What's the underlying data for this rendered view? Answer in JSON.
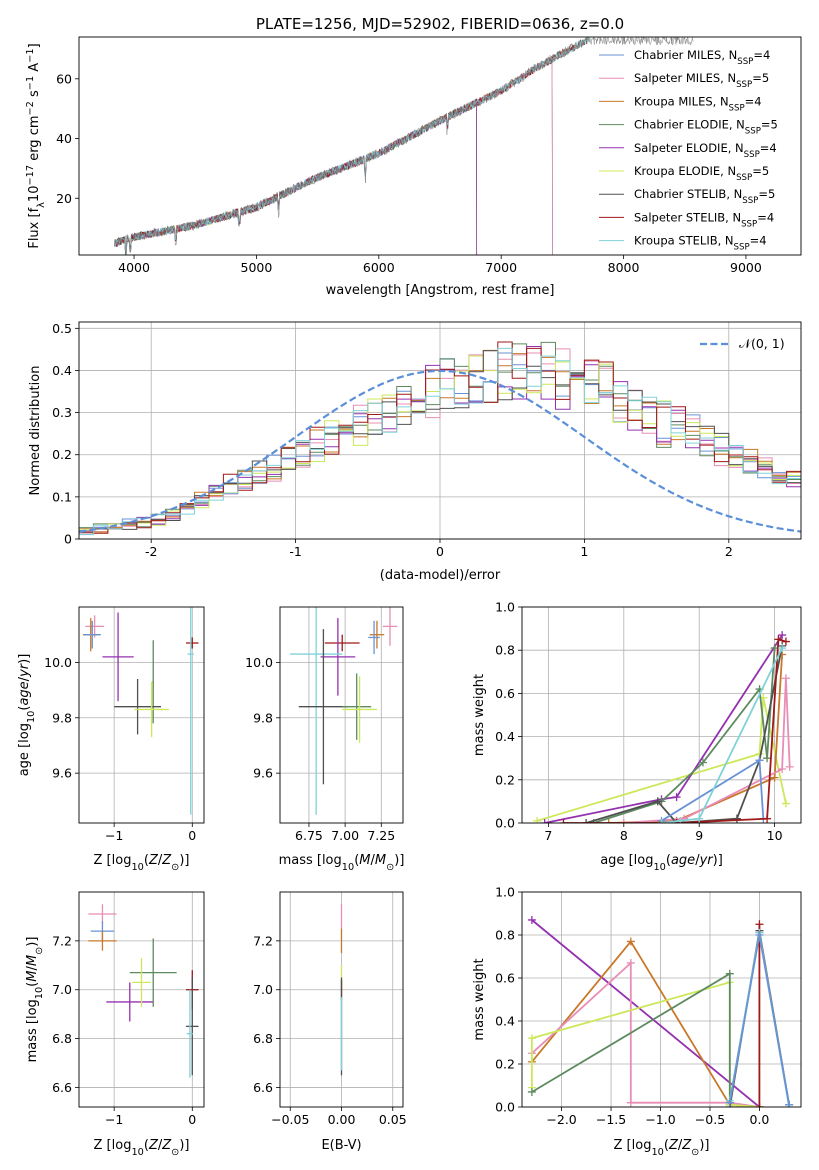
{
  "figure": {
    "title": "PLATE=1256, MJD=52902, FIBERID=0636, z=0.0"
  },
  "colors": {
    "chabrier_miles": "#6a93d6",
    "salpeter_miles": "#e88db5",
    "kroupa_miles": "#c87828",
    "chabrier_elodie": "#5e8a60",
    "salpeter_elodie": "#9530b0",
    "kroupa_elodie": "#cce85a",
    "chabrier_stelib": "#505050",
    "salpeter_stelib": "#a01818",
    "kroupa_stelib": "#7fd2d8",
    "normal": "#5b8fd8"
  },
  "chart_data": [
    {
      "id": "spectrum",
      "type": "line",
      "xlabel": "wavelength [Angstrom, rest frame]",
      "ylabel": "Flux [f_λ10^-17 erg cm^-2 s^-1 A^-1]",
      "xlim": [
        3550,
        9450
      ],
      "ylim": [
        1,
        74
      ],
      "xticks": [
        4000,
        5000,
        6000,
        7000,
        8000,
        9000
      ],
      "yticks": [
        20,
        40,
        60
      ],
      "grid": false,
      "legend": "top-right",
      "series_legend": [
        {
          "key": "chabrier_miles",
          "label": "Chabrier MILES, N",
          "sub": "SSP",
          "tail": "=4"
        },
        {
          "key": "salpeter_miles",
          "label": "Salpeter MILES, N",
          "sub": "SSP",
          "tail": "=5"
        },
        {
          "key": "kroupa_miles",
          "label": "Kroupa MILES, N",
          "sub": "SSP",
          "tail": "=4"
        },
        {
          "key": "chabrier_elodie",
          "label": "Chabrier ELODIE, N",
          "sub": "SSP",
          "tail": "=5"
        },
        {
          "key": "salpeter_elodie",
          "label": "Salpeter ELODIE, N",
          "sub": "SSP",
          "tail": "=4"
        },
        {
          "key": "kroupa_elodie",
          "label": "Kroupa ELODIE, N",
          "sub": "SSP",
          "tail": "=5"
        },
        {
          "key": "chabrier_stelib",
          "label": "Chabrier STELIB, N",
          "sub": "SSP",
          "tail": "=5"
        },
        {
          "key": "salpeter_stelib",
          "label": "Salpeter STELIB, N",
          "sub": "SSP",
          "tail": "=4"
        },
        {
          "key": "kroupa_stelib",
          "label": "Kroupa STELIB, N",
          "sub": "SSP",
          "tail": "=4"
        }
      ],
      "data_trend": {
        "wavelength": [
          3840,
          4000,
          4500,
          5000,
          5500,
          6000,
          6500,
          7000,
          7300,
          7700
        ],
        "flux": [
          5,
          7,
          11,
          17,
          27,
          35,
          46,
          56,
          64,
          73
        ]
      },
      "models": [
        {
          "key": "kroupa_elodie",
          "end": 6800
        },
        {
          "key": "kroupa_miles",
          "end": 7420
        },
        {
          "key": "chabrier_miles",
          "end": 7420
        },
        {
          "key": "salpeter_miles",
          "end": 7420
        },
        {
          "key": "chabrier_elodie",
          "end": 6800
        },
        {
          "key": "salpeter_elodie",
          "end": 6800
        },
        {
          "key": "chabrier_stelib",
          "end": 9300
        },
        {
          "key": "salpeter_stelib",
          "end": 9300
        },
        {
          "key": "kroupa_stelib",
          "end": 9300
        }
      ]
    },
    {
      "id": "residual-hist",
      "type": "histogram",
      "xlabel": "(data-model)/error",
      "ylabel": "Normed distribution",
      "xlim": [
        -2.5,
        2.5
      ],
      "ylim": [
        0,
        0.515
      ],
      "xticks": [
        -2,
        -1,
        0,
        1,
        2
      ],
      "yticks": [
        0.0,
        0.1,
        0.2,
        0.3,
        0.4,
        0.5
      ],
      "grid": true,
      "legend": "top-right",
      "legend_label": "𝒩(0, 1)",
      "bin_width": 0.1,
      "base_profile": [
        0.02,
        0.025,
        0.03,
        0.035,
        0.04,
        0.045,
        0.055,
        0.07,
        0.09,
        0.11,
        0.125,
        0.14,
        0.16,
        0.175,
        0.195,
        0.2,
        0.22,
        0.24,
        0.255,
        0.27,
        0.29,
        0.305,
        0.32,
        0.34,
        0.355,
        0.365,
        0.375,
        0.385,
        0.395,
        0.4,
        0.405,
        0.4,
        0.395,
        0.385,
        0.375,
        0.36,
        0.345,
        0.33,
        0.31,
        0.295,
        0.275,
        0.255,
        0.235,
        0.215,
        0.195,
        0.175,
        0.16,
        0.145,
        0.13,
        0.115
      ],
      "series_keys": [
        "chabrier_miles",
        "salpeter_miles",
        "kroupa_miles",
        "chabrier_elodie",
        "salpeter_elodie",
        "kroupa_elodie",
        "chabrier_stelib",
        "salpeter_stelib",
        "kroupa_stelib"
      ]
    },
    {
      "id": "age-vs-z",
      "type": "errorbar",
      "xlabel": "Z [log10(Z/Z☉)]",
      "ylabel": "age [log10(age/yr)]",
      "xlim": [
        -1.45,
        0.15
      ],
      "ylim": [
        9.42,
        10.2
      ],
      "xticks": [
        -1,
        0
      ],
      "xtick_labels": [
        "−1",
        "0"
      ],
      "yticks": [
        9.6,
        9.8,
        10.0
      ],
      "ytick_labels": [
        "9.6",
        "9.8",
        "10.0"
      ],
      "grid": true,
      "points": [
        {
          "key": "salpeter_miles",
          "x": -1.25,
          "y": 10.13,
          "xerr": 0.12,
          "yerr": 0.04
        },
        {
          "key": "kroupa_miles",
          "x": -1.3,
          "y": 10.1,
          "xerr": 0.1,
          "yerr": 0.06
        },
        {
          "key": "chabrier_miles",
          "x": -1.28,
          "y": 10.1,
          "xerr": 0.11,
          "yerr": 0.05
        },
        {
          "key": "salpeter_elodie",
          "x": -0.95,
          "y": 10.02,
          "xerr": 0.2,
          "yerr": 0.16
        },
        {
          "key": "chabrier_elodie",
          "x": -0.5,
          "y": 9.93,
          "xerr": 0.01,
          "yerr": 0.15
        },
        {
          "key": "chabrier_stelib",
          "x": -0.7,
          "y": 9.84,
          "xerr": 0.3,
          "yerr": 0.1
        },
        {
          "key": "kroupa_elodie",
          "x": -0.52,
          "y": 9.83,
          "xerr": 0.22,
          "yerr": 0.1
        },
        {
          "key": "salpeter_stelib",
          "x": 0.0,
          "y": 10.07,
          "xerr": 0.08,
          "yerr": 0.02
        },
        {
          "key": "kroupa_stelib",
          "x": -0.02,
          "y": 10.03,
          "xerr": 0.04,
          "yerr": 0.58
        }
      ]
    },
    {
      "id": "age-vs-mass",
      "type": "errorbar",
      "xlabel": "mass [log10(M/M☉)]",
      "ylabel": "",
      "xlim": [
        6.55,
        7.4
      ],
      "ylim": [
        9.42,
        10.2
      ],
      "xticks": [
        6.75,
        7.0,
        7.25
      ],
      "xtick_labels": [
        "6.75",
        "7.00",
        "7.25"
      ],
      "yticks": [
        9.6,
        9.8,
        10.0
      ],
      "ytick_labels": [
        "9.6",
        "9.8",
        "10.0"
      ],
      "grid": true,
      "points": [
        {
          "key": "salpeter_miles",
          "x": 7.31,
          "y": 10.13,
          "xerr": 0.05,
          "yerr": 0.07
        },
        {
          "key": "kroupa_miles",
          "x": 7.22,
          "y": 10.1,
          "xerr": 0.05,
          "yerr": 0.05
        },
        {
          "key": "chabrier_miles",
          "x": 7.2,
          "y": 10.09,
          "xerr": 0.04,
          "yerr": 0.06
        },
        {
          "key": "salpeter_stelib",
          "x": 6.98,
          "y": 10.07,
          "xerr": 0.12,
          "yerr": 0.03
        },
        {
          "key": "salpeter_elodie",
          "x": 6.95,
          "y": 10.02,
          "xerr": 0.12,
          "yerr": 0.14
        },
        {
          "key": "kroupa_stelib",
          "x": 6.8,
          "y": 10.03,
          "xerr": 0.18,
          "yerr": 0.58
        },
        {
          "key": "chabrier_stelib",
          "x": 6.85,
          "y": 9.84,
          "xerr": 0.17,
          "yerr": 0.28
        },
        {
          "key": "chabrier_elodie",
          "x": 7.08,
          "y": 9.84,
          "xerr": 0.1,
          "yerr": 0.12
        },
        {
          "key": "kroupa_elodie",
          "x": 7.1,
          "y": 9.83,
          "xerr": 0.12,
          "yerr": 0.12
        }
      ]
    },
    {
      "id": "mass-weight-vs-age",
      "type": "line",
      "xlabel": "age [log10(age/yr)]",
      "ylabel": "mass weight",
      "xlim": [
        6.65,
        10.35
      ],
      "ylim": [
        0,
        1
      ],
      "xticks": [
        7,
        8,
        9,
        10
      ],
      "xtick_labels": [
        "7",
        "8",
        "9",
        "10"
      ],
      "yticks": [
        0.0,
        0.2,
        0.4,
        0.6,
        0.8,
        1.0
      ],
      "ytick_labels": [
        "0.0",
        "0.2",
        "0.4",
        "0.6",
        "0.8",
        "1.0"
      ],
      "grid": true,
      "series": [
        {
          "key": "kroupa_elodie",
          "x": [
            6.85,
            9.8,
            9.85,
            10.15
          ],
          "y": [
            0.01,
            0.32,
            0.58,
            0.09
          ]
        },
        {
          "key": "salpeter_elodie",
          "x": [
            6.95,
            8.5,
            8.7,
            10.1
          ],
          "y": [
            0.0,
            0.11,
            0.12,
            0.87
          ]
        },
        {
          "key": "chabrier_elodie",
          "x": [
            7.6,
            8.5,
            9.05,
            9.8,
            9.9,
            10.0
          ],
          "y": [
            0.0,
            0.1,
            0.28,
            0.62,
            0.3,
            0.81
          ]
        },
        {
          "key": "kroupa_miles",
          "x": [
            7.8,
            8.7,
            10.0,
            10.1
          ],
          "y": [
            0.0,
            0.01,
            0.21,
            0.78
          ]
        },
        {
          "key": "salpeter_miles",
          "x": [
            8.0,
            8.8,
            10.1,
            10.15,
            10.2
          ],
          "y": [
            0.0,
            0.02,
            0.25,
            0.67,
            0.26
          ]
        },
        {
          "key": "chabrier_stelib",
          "x": [
            7.5,
            8.45,
            8.7,
            9.5,
            9.8,
            10.1
          ],
          "y": [
            0.0,
            0.1,
            0.0,
            0.02,
            0.29,
            0.82
          ]
        },
        {
          "key": "chabrier_miles",
          "x": [
            8.5,
            9.8,
            9.85
          ],
          "y": [
            0.01,
            0.29,
            0.02
          ]
        },
        {
          "key": "salpeter_stelib",
          "x": [
            7.2,
            8.7,
            9.9,
            10.05,
            10.15
          ],
          "y": [
            0.0,
            0.0,
            0.02,
            0.85,
            0.84
          ]
        },
        {
          "key": "kroupa_stelib",
          "x": [
            8.5,
            8.75,
            9.0,
            10.1
          ],
          "y": [
            0.0,
            0.01,
            0.02,
            0.81
          ]
        }
      ]
    },
    {
      "id": "mass-vs-z",
      "type": "errorbar",
      "xlabel": "Z [log10(Z/Z☉)]",
      "ylabel": "mass [log10(M/M☉)]",
      "xlim": [
        -1.45,
        0.15
      ],
      "ylim": [
        6.52,
        7.4
      ],
      "xticks": [
        -1,
        0
      ],
      "xtick_labels": [
        "−1",
        "0"
      ],
      "yticks": [
        6.6,
        6.8,
        7.0,
        7.2
      ],
      "ytick_labels": [
        "6.6",
        "6.8",
        "7.0",
        "7.2"
      ],
      "grid": true,
      "points": [
        {
          "key": "salpeter_miles",
          "x": -1.15,
          "y": 7.31,
          "xerr": 0.18,
          "yerr": 0.04
        },
        {
          "key": "chabrier_miles",
          "x": -1.15,
          "y": 7.24,
          "xerr": 0.15,
          "yerr": 0.04
        },
        {
          "key": "kroupa_miles",
          "x": -1.15,
          "y": 7.2,
          "xerr": 0.18,
          "yerr": 0.04
        },
        {
          "key": "salpeter_elodie",
          "x": -0.8,
          "y": 6.95,
          "xerr": 0.3,
          "yerr": 0.08
        },
        {
          "key": "chabrier_elodie",
          "x": -0.5,
          "y": 7.07,
          "xerr": 0.3,
          "yerr": 0.14
        },
        {
          "key": "kroupa_elodie",
          "x": -0.65,
          "y": 7.03,
          "xerr": 0.12,
          "yerr": 0.1
        },
        {
          "key": "salpeter_stelib",
          "x": 0.0,
          "y": 7.0,
          "xerr": 0.08,
          "yerr": 0.08
        },
        {
          "key": "chabrier_stelib",
          "x": 0.0,
          "y": 6.85,
          "xerr": 0.08,
          "yerr": 0.2
        },
        {
          "key": "kroupa_stelib",
          "x": -0.03,
          "y": 6.82,
          "xerr": 0.04,
          "yerr": 0.18
        }
      ]
    },
    {
      "id": "mass-vs-ebv",
      "type": "errorbar",
      "xlabel": "E(B-V)",
      "ylabel": "",
      "xlim": [
        -0.06,
        0.06
      ],
      "ylim": [
        6.52,
        7.4
      ],
      "xticks": [
        -0.05,
        0.0,
        0.05
      ],
      "xtick_labels": [
        "−0.05",
        "0.00",
        "0.05"
      ],
      "yticks": [
        6.6,
        6.8,
        7.0,
        7.2
      ],
      "ytick_labels": [
        "6.6",
        "6.8",
        "7.0",
        "7.2"
      ],
      "grid": true,
      "points": [
        {
          "key": "salpeter_miles",
          "x": 0.0,
          "y": 7.3,
          "xerr": 0.0,
          "yerr": 0.05
        },
        {
          "key": "kroupa_miles",
          "x": 0.0,
          "y": 7.2,
          "xerr": 0.0,
          "yerr": 0.05
        },
        {
          "key": "kroupa_elodie",
          "x": 0.0,
          "y": 7.05,
          "xerr": 0.0,
          "yerr": 0.05
        },
        {
          "key": "salpeter_stelib",
          "x": 0.0,
          "y": 7.0,
          "xerr": 0.0,
          "yerr": 0.04
        },
        {
          "key": "chabrier_stelib",
          "x": 0.0,
          "y": 6.85,
          "xerr": 0.0,
          "yerr": 0.2
        },
        {
          "key": "kroupa_stelib",
          "x": 0.0,
          "y": 6.82,
          "xerr": 0.0,
          "yerr": 0.15
        }
      ]
    },
    {
      "id": "mass-weight-vs-z",
      "type": "line",
      "xlabel": "Z [log10(Z/Z☉)]",
      "ylabel": "mass weight",
      "xlim": [
        -2.4,
        0.42
      ],
      "ylim": [
        0,
        1
      ],
      "xticks": [
        -2.0,
        -1.5,
        -1.0,
        -0.5,
        0.0
      ],
      "xtick_labels": [
        "−2.0",
        "−1.5",
        "−1.0",
        "−0.5",
        "0.0"
      ],
      "yticks": [
        0.0,
        0.2,
        0.4,
        0.6,
        0.8,
        1.0
      ],
      "ytick_labels": [
        "0.0",
        "0.2",
        "0.4",
        "0.6",
        "0.8",
        "1.0"
      ],
      "grid": true,
      "series": [
        {
          "key": "salpeter_elodie",
          "x": [
            -2.3,
            0.0
          ],
          "y": [
            0.87,
            0.0
          ]
        },
        {
          "key": "kroupa_miles",
          "x": [
            -2.3,
            -1.3,
            -0.3,
            0.0
          ],
          "y": [
            0.21,
            0.77,
            0.01,
            0.0
          ]
        },
        {
          "key": "salpeter_miles",
          "x": [
            -2.3,
            -1.3,
            -1.3,
            -0.3,
            0.0
          ],
          "y": [
            0.25,
            0.67,
            0.02,
            0.02,
            0.0
          ]
        },
        {
          "key": "kroupa_elodie",
          "x": [
            -2.3,
            -2.3,
            -0.3,
            -0.3,
            0.0
          ],
          "y": [
            0.09,
            0.32,
            0.58,
            0.01,
            0.0
          ]
        },
        {
          "key": "chabrier_elodie",
          "x": [
            -2.3,
            -0.3,
            -0.3,
            0.0
          ],
          "y": [
            0.07,
            0.62,
            0.02,
            0.81
          ]
        },
        {
          "key": "chabrier_stelib",
          "x": [
            -0.3,
            0.0,
            0.3
          ],
          "y": [
            0.0,
            0.82,
            0.01
          ]
        },
        {
          "key": "salpeter_stelib",
          "x": [
            0.0,
            0.0
          ],
          "y": [
            0.85,
            0.0
          ]
        },
        {
          "key": "kroupa_stelib",
          "x": [
            -0.3,
            0.0,
            0.3
          ],
          "y": [
            0.03,
            0.81,
            0.0
          ]
        },
        {
          "key": "chabrier_miles",
          "x": [
            -0.3,
            0.0,
            0.3
          ],
          "y": [
            0.02,
            0.8,
            0.01
          ]
        }
      ]
    }
  ]
}
